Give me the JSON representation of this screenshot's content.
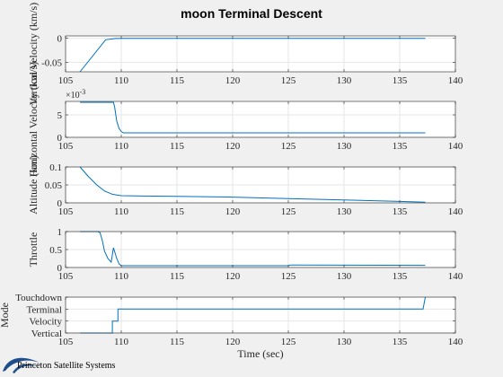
{
  "figure": {
    "title": "moon Terminal Descent",
    "logo_text": "Princeton Satellite Systems",
    "colors": {
      "background": "#f0f0f0",
      "axes": "#ffffff",
      "line": "#0072bd",
      "grid": "#e6e6e6",
      "axis_line": "#262626",
      "logo": "#1f4e8c"
    }
  },
  "chart_data": [
    {
      "type": "line",
      "ylabel": "Vertical Velocity (km/s)",
      "xlabel": "",
      "xlim": [
        105,
        140
      ],
      "ylim": [
        -0.07,
        0.005
      ],
      "xticks": [
        105,
        110,
        115,
        120,
        125,
        130,
        135,
        140
      ],
      "xticklabels": [
        "105",
        "110",
        "115",
        "120",
        "125",
        "130",
        "135",
        "140"
      ],
      "yticks": [
        0,
        -0.05
      ],
      "yticklabels": [
        "0",
        "-0.05"
      ],
      "grid": true,
      "x": [
        106.3,
        108.6,
        109.5,
        110.5,
        115,
        120,
        125,
        130,
        137.3
      ],
      "y": [
        -0.07,
        -0.003,
        -0.0005,
        0,
        0,
        0,
        0,
        0,
        0
      ]
    },
    {
      "type": "line",
      "ylabel": "Horizontal Velocity (km/s)",
      "xlabel": "",
      "exponent_label": "×10",
      "exponent_power": "-3",
      "xlim": [
        105,
        140
      ],
      "ylim": [
        0,
        8
      ],
      "xticks": [
        105,
        110,
        115,
        120,
        125,
        130,
        135,
        140
      ],
      "xticklabels": [
        "105",
        "110",
        "115",
        "120",
        "125",
        "130",
        "135",
        "140"
      ],
      "yticks": [
        0,
        5
      ],
      "yticklabels": [
        "0",
        "5"
      ],
      "grid": true,
      "x": [
        106.3,
        109.3,
        109.4,
        109.5,
        109.6,
        109.8,
        110.0,
        110.2,
        112,
        137.3
      ],
      "y": [
        7.8,
        7.8,
        6.8,
        5.2,
        3.6,
        2.0,
        1.3,
        1.0,
        1.0,
        1.0
      ]
    },
    {
      "type": "line",
      "ylabel": "Altitude (km)",
      "xlabel": "",
      "xlim": [
        105,
        140
      ],
      "ylim": [
        0,
        0.1
      ],
      "xticks": [
        105,
        110,
        115,
        120,
        125,
        130,
        135,
        140
      ],
      "xticklabels": [
        "105",
        "110",
        "115",
        "120",
        "125",
        "130",
        "135",
        "140"
      ],
      "yticks": [
        0,
        0.05,
        0.1
      ],
      "yticklabels": [
        "0",
        "0.05",
        "0.1"
      ],
      "grid": true,
      "x": [
        106.3,
        107,
        107.8,
        108.5,
        109.2,
        110,
        112,
        115,
        120,
        125,
        130,
        135,
        137.3
      ],
      "y": [
        0.1,
        0.075,
        0.05,
        0.033,
        0.024,
        0.02,
        0.019,
        0.018,
        0.016,
        0.012,
        0.008,
        0.004,
        0.002
      ]
    },
    {
      "type": "line",
      "ylabel": "Throttle",
      "xlabel": "",
      "xlim": [
        105,
        140
      ],
      "ylim": [
        0,
        1
      ],
      "xticks": [
        105,
        110,
        115,
        120,
        125,
        130,
        135,
        140
      ],
      "xticklabels": [
        "105",
        "110",
        "115",
        "120",
        "125",
        "130",
        "135",
        "140"
      ],
      "yticks": [
        0,
        0.5,
        1
      ],
      "yticklabels": [
        "0",
        "0.5",
        "1"
      ],
      "grid": true,
      "x": [
        106.3,
        107.9,
        108.1,
        108.3,
        108.5,
        108.8,
        109.1,
        109.3,
        109.6,
        109.8,
        110.0,
        112,
        125,
        125.2,
        137.3
      ],
      "y": [
        1.0,
        1.0,
        0.97,
        0.75,
        0.45,
        0.25,
        0.15,
        0.55,
        0.25,
        0.1,
        0.05,
        0.05,
        0.05,
        0.07,
        0.06
      ]
    },
    {
      "type": "line",
      "ylabel": "Mode",
      "xlabel": "Time (sec)",
      "xlim": [
        105,
        140
      ],
      "ylim": [
        1,
        4
      ],
      "xticks": [
        105,
        110,
        115,
        120,
        125,
        130,
        135,
        140
      ],
      "xticklabels": [
        "105",
        "110",
        "115",
        "120",
        "125",
        "130",
        "135",
        "140"
      ],
      "yticks": [
        1,
        2,
        3,
        4
      ],
      "yticklabels": [
        "Vertical",
        "Velocity",
        "Terminal",
        "Touchdown"
      ],
      "grid": true,
      "x": [
        106.3,
        109.2,
        109.2,
        109.7,
        109.7,
        137.1,
        137.3
      ],
      "y": [
        1,
        1,
        2,
        2,
        3,
        3,
        4
      ]
    }
  ]
}
